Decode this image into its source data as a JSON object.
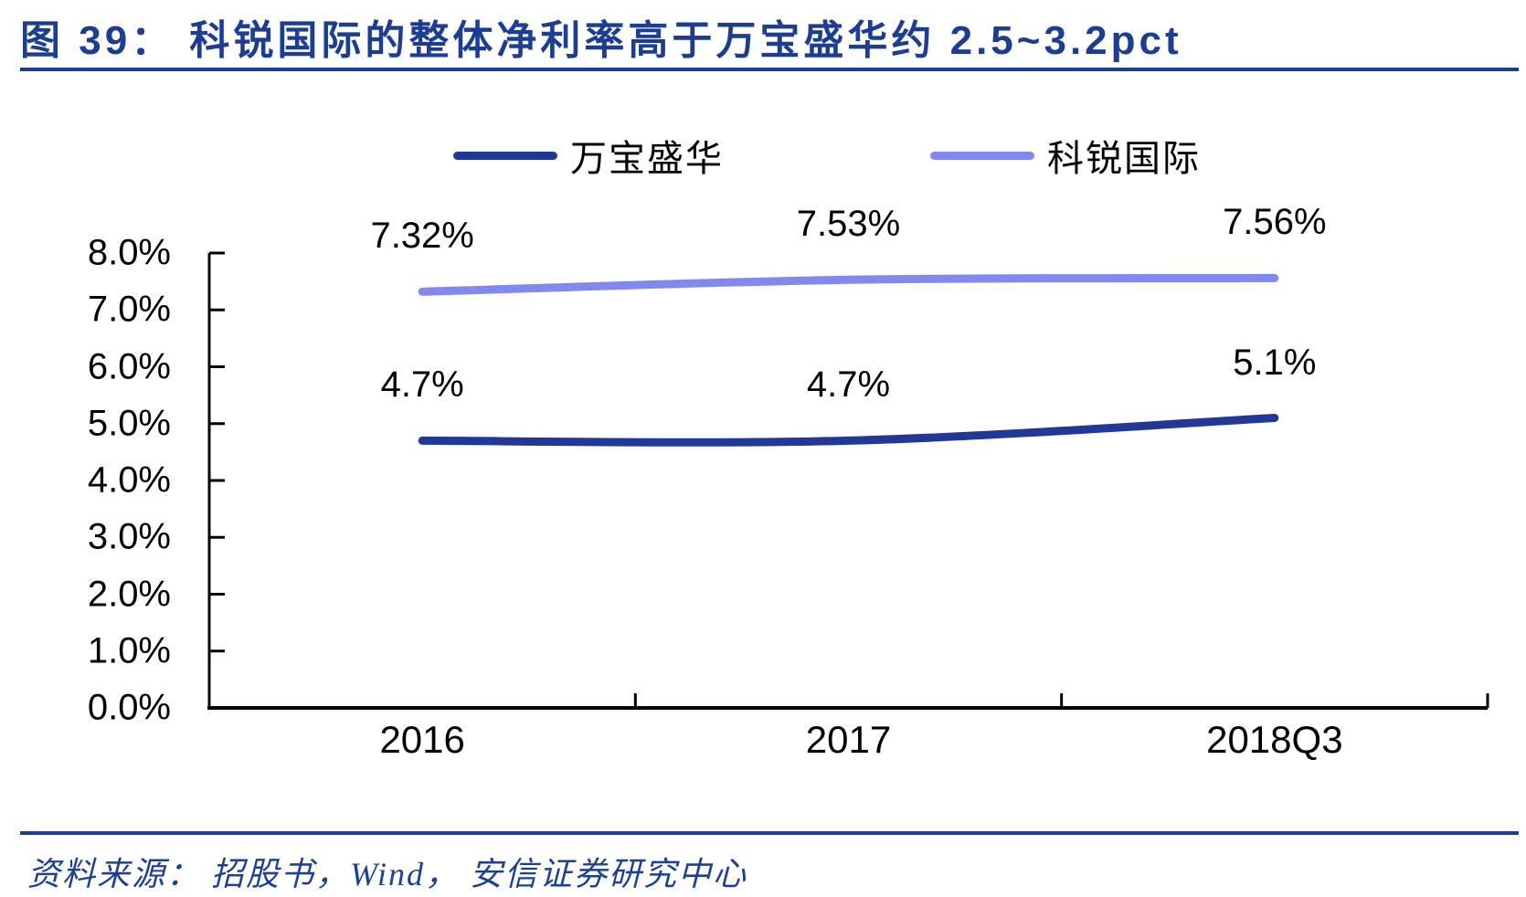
{
  "figure_title": "图 39： 科锐国际的整体净利率高于万宝盛华约 2.5~3.2pct",
  "source_note": "资料来源： 招股书，Wind， 安信证券研究中心",
  "colors": {
    "accent_navy": "#1c3d92",
    "series_manpower_navy": "#213896",
    "series_career_periwinkle": "#8289ee",
    "axis_black": "#000000"
  },
  "legend": {
    "items": [
      {
        "label": "万宝盛华",
        "color": "#213896"
      },
      {
        "label": "科锐国际",
        "color": "#8289ee"
      }
    ]
  },
  "chart_data": {
    "type": "line",
    "title": "科锐国际的整体净利率高于万宝盛华约 2.5~3.2pct",
    "categories": [
      "2016",
      "2017",
      "2018Q3"
    ],
    "series": [
      {
        "name": "万宝盛华",
        "color": "#213896",
        "values": [
          4.7,
          4.7,
          5.1
        ],
        "data_labels": [
          "4.7%",
          "4.7%",
          "5.1%"
        ]
      },
      {
        "name": "科锐国际",
        "color": "#8289ee",
        "values": [
          7.32,
          7.53,
          7.56
        ],
        "data_labels": [
          "7.32%",
          "7.53%",
          "7.56%"
        ]
      }
    ],
    "xlabel": "",
    "ylabel": "",
    "ylim": [
      0,
      8
    ],
    "y_tick_step": 1,
    "y_tick_labels": [
      "0.0%",
      "1.0%",
      "2.0%",
      "3.0%",
      "4.0%",
      "5.0%",
      "6.0%",
      "7.0%",
      "8.0%"
    ],
    "grid": false,
    "legend_position": "top"
  }
}
